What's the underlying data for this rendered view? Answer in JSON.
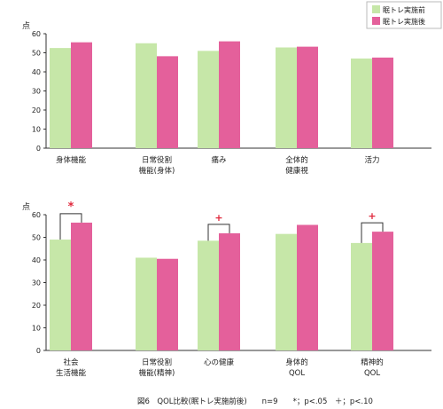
{
  "legend": [
    {
      "label": "眠トレ実施前",
      "color": "#c6e7a8"
    },
    {
      "label": "眠トレ実施後",
      "color": "#e4609b"
    }
  ],
  "caption": "図6　QOL比較(眠トレ実施前後)　　n=9　　*；p<.05　＋；p<.10",
  "chart_data": [
    {
      "type": "bar",
      "ylabel": "点",
      "ylim": [
        0,
        60
      ],
      "yticks": [
        0,
        10,
        20,
        30,
        40,
        50,
        60
      ],
      "categories": [
        "身体機能",
        "日常役割\n機能(身体)",
        "痛み",
        "全体的\n健康視",
        "活力"
      ],
      "series": [
        {
          "name": "眠トレ実施前",
          "values": [
            52.5,
            55.0,
            51.0,
            52.8,
            47.0
          ]
        },
        {
          "name": "眠トレ実施後",
          "values": [
            55.5,
            48.2,
            56.0,
            53.2,
            47.5
          ]
        }
      ],
      "significance": [],
      "grid": false,
      "legend_position": "top-right"
    },
    {
      "type": "bar",
      "ylabel": "点",
      "ylim": [
        0,
        60
      ],
      "yticks": [
        0,
        10,
        20,
        30,
        40,
        50,
        60
      ],
      "categories": [
        "社会\n生活機能",
        "日常役割\n機能(精神)",
        "心の健康",
        "身体的\nQOL",
        "精神的\nQOL"
      ],
      "series": [
        {
          "name": "眠トレ実施前",
          "values": [
            49.0,
            41.0,
            48.5,
            51.5,
            47.5
          ]
        },
        {
          "name": "眠トレ実施後",
          "values": [
            56.5,
            40.5,
            51.8,
            55.5,
            52.5
          ]
        }
      ],
      "significance": [
        {
          "category_index": 0,
          "mark": "*"
        },
        {
          "category_index": 2,
          "mark": "+"
        },
        {
          "category_index": 4,
          "mark": "+"
        }
      ],
      "grid": false,
      "legend_position": "none"
    }
  ]
}
